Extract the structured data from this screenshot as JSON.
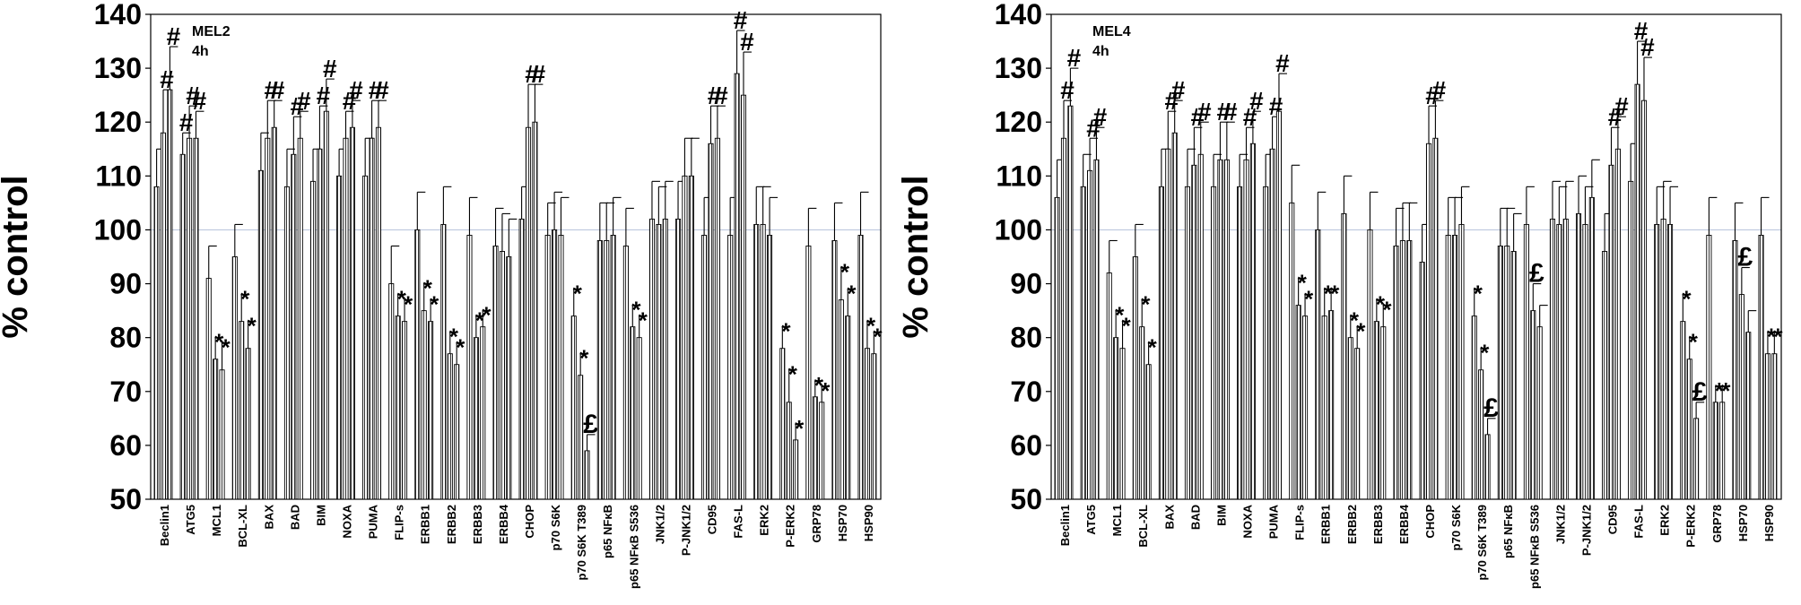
{
  "chart_data": [
    {
      "type": "bar",
      "title": "MEL2",
      "subtitle": "4h",
      "ylabel": "% control",
      "ylim": [
        50,
        140
      ],
      "yticks": [
        50,
        60,
        70,
        80,
        90,
        100,
        110,
        120,
        130,
        140
      ],
      "reference_line": 100,
      "categories": [
        "Beclin1",
        "ATG5",
        "MCL1",
        "BCL-XL",
        "BAX",
        "BAD",
        "BIM",
        "NOXA",
        "PUMA",
        "FLIP-s",
        "ERBB1",
        "ERBB2",
        "ERBB3",
        "ERBB4",
        "CHOP",
        "p70 S6K",
        "p70 S6K T389",
        "p65 NFκB",
        "p65 NFκB S536",
        "JNK1/2",
        "P-JNK1/2",
        "CD95",
        "FAS-L",
        "ERK2",
        "P-ERK2",
        "GRP78",
        "HSP70",
        "HSP90"
      ],
      "groups": [
        {
          "values": [
            108,
            118,
            126
          ],
          "errors": [
            7,
            8,
            8
          ],
          "marks": [
            "",
            "#",
            "#"
          ]
        },
        {
          "values": [
            114,
            117,
            117
          ],
          "errors": [
            4,
            6,
            5
          ],
          "marks": [
            "#",
            "#",
            "#"
          ]
        },
        {
          "values": [
            91,
            76,
            74
          ],
          "errors": [
            6,
            4,
            5
          ],
          "marks": [
            "",
            "*",
            "*"
          ]
        },
        {
          "values": [
            95,
            83,
            78
          ],
          "errors": [
            6,
            5,
            5
          ],
          "marks": [
            "",
            "*",
            "*"
          ]
        },
        {
          "values": [
            111,
            117,
            119
          ],
          "errors": [
            7,
            7,
            5
          ],
          "marks": [
            "",
            "#",
            "#"
          ]
        },
        {
          "values": [
            108,
            114,
            117
          ],
          "errors": [
            7,
            7,
            5
          ],
          "marks": [
            "",
            "#",
            "#"
          ]
        },
        {
          "values": [
            109,
            115,
            122
          ],
          "errors": [
            6,
            8,
            6
          ],
          "marks": [
            "",
            "#",
            "#"
          ]
        },
        {
          "values": [
            110,
            117,
            119
          ],
          "errors": [
            5,
            5,
            5
          ],
          "marks": [
            "",
            "#",
            "#"
          ]
        },
        {
          "values": [
            110,
            117,
            119
          ],
          "errors": [
            7,
            7,
            5
          ],
          "marks": [
            "",
            "#",
            "#"
          ]
        },
        {
          "values": [
            90,
            84,
            83
          ],
          "errors": [
            7,
            4,
            4
          ],
          "marks": [
            "",
            "*",
            "*"
          ]
        },
        {
          "values": [
            100,
            85,
            83
          ],
          "errors": [
            7,
            5,
            4
          ],
          "marks": [
            "",
            "*",
            "*"
          ]
        },
        {
          "values": [
            101,
            77,
            75
          ],
          "errors": [
            7,
            4,
            4
          ],
          "marks": [
            "",
            "*",
            "*"
          ]
        },
        {
          "values": [
            99,
            80,
            82
          ],
          "errors": [
            7,
            4,
            3
          ],
          "marks": [
            "",
            "*",
            "*"
          ]
        },
        {
          "values": [
            97,
            96,
            95
          ],
          "errors": [
            7,
            7,
            7
          ],
          "marks": [
            "",
            "",
            ""
          ]
        },
        {
          "values": [
            102,
            119,
            120
          ],
          "errors": [
            6,
            8,
            7
          ],
          "marks": [
            "",
            "#",
            "#"
          ]
        },
        {
          "values": [
            99,
            100,
            99
          ],
          "errors": [
            6,
            7,
            7
          ],
          "marks": [
            "",
            "",
            ""
          ]
        },
        {
          "values": [
            84,
            73,
            59
          ],
          "errors": [
            5,
            4,
            3
          ],
          "marks": [
            "*",
            "*",
            "£"
          ]
        },
        {
          "values": [
            98,
            98,
            99
          ],
          "errors": [
            7,
            7,
            7
          ],
          "marks": [
            "",
            "",
            ""
          ]
        },
        {
          "values": [
            97,
            82,
            80
          ],
          "errors": [
            7,
            4,
            4
          ],
          "marks": [
            "",
            "*",
            "*"
          ]
        },
        {
          "values": [
            102,
            101,
            102
          ],
          "errors": [
            7,
            7,
            7
          ],
          "marks": [
            "",
            "",
            ""
          ]
        },
        {
          "values": [
            102,
            110,
            110
          ],
          "errors": [
            7,
            7,
            7
          ],
          "marks": [
            "",
            "",
            ""
          ]
        },
        {
          "values": [
            99,
            116,
            117
          ],
          "errors": [
            7,
            7,
            6
          ],
          "marks": [
            "",
            "#",
            "#"
          ]
        },
        {
          "values": [
            99,
            129,
            125
          ],
          "errors": [
            7,
            8,
            8
          ],
          "marks": [
            "",
            "#",
            "#"
          ]
        },
        {
          "values": [
            101,
            101,
            99
          ],
          "errors": [
            7,
            7,
            7
          ],
          "marks": [
            "",
            "",
            ""
          ]
        },
        {
          "values": [
            78,
            68,
            61
          ],
          "errors": [
            4,
            6,
            3
          ],
          "marks": [
            "*",
            "*",
            "*"
          ]
        },
        {
          "values": [
            97,
            69,
            68
          ],
          "errors": [
            7,
            3,
            3
          ],
          "marks": [
            "",
            "*",
            "*"
          ]
        },
        {
          "values": [
            98,
            87,
            84
          ],
          "errors": [
            7,
            6,
            5
          ],
          "marks": [
            "",
            "*",
            "*"
          ]
        },
        {
          "values": [
            99,
            78,
            77
          ],
          "errors": [
            8,
            5,
            4
          ],
          "marks": [
            "",
            "*",
            "*"
          ]
        }
      ]
    },
    {
      "type": "bar",
      "title": "MEL4",
      "subtitle": "4h",
      "ylabel": "% control",
      "ylim": [
        50,
        140
      ],
      "yticks": [
        50,
        60,
        70,
        80,
        90,
        100,
        110,
        120,
        130,
        140
      ],
      "reference_line": 100,
      "categories": [
        "Beclin1",
        "ATG5",
        "MCL1",
        "BCL-XL",
        "BAX",
        "BAD",
        "BIM",
        "NOXA",
        "PUMA",
        "FLIP-s",
        "ERBB1",
        "ERBB2",
        "ERBB3",
        "ERBB4",
        "CHOP",
        "p70 S6K",
        "p70 S6K T389",
        "p65 NFκB",
        "p65 NFκB S536",
        "JNK1/2",
        "P-JNK1/2",
        "CD95",
        "FAS-L",
        "ERK2",
        "P-ERK2",
        "GRP78",
        "HSP70",
        "HSP90"
      ],
      "groups": [
        {
          "values": [
            106,
            117,
            123
          ],
          "errors": [
            7,
            7,
            7
          ],
          "marks": [
            "",
            "#",
            "#"
          ]
        },
        {
          "values": [
            108,
            111,
            113
          ],
          "errors": [
            6,
            6,
            6
          ],
          "marks": [
            "",
            "#",
            "#"
          ]
        },
        {
          "values": [
            92,
            80,
            78
          ],
          "errors": [
            6,
            5,
            5
          ],
          "marks": [
            "",
            "*",
            "*"
          ]
        },
        {
          "values": [
            95,
            82,
            75
          ],
          "errors": [
            6,
            5,
            4
          ],
          "marks": [
            "",
            "*",
            "*"
          ]
        },
        {
          "values": [
            108,
            115,
            118
          ],
          "errors": [
            7,
            7,
            6
          ],
          "marks": [
            "",
            "#",
            "#"
          ]
        },
        {
          "values": [
            108,
            112,
            114
          ],
          "errors": [
            7,
            7,
            6
          ],
          "marks": [
            "",
            "#",
            "#"
          ]
        },
        {
          "values": [
            108,
            113,
            113
          ],
          "errors": [
            6,
            7,
            7
          ],
          "marks": [
            "",
            "#",
            "#"
          ]
        },
        {
          "values": [
            108,
            113,
            116
          ],
          "errors": [
            6,
            6,
            6
          ],
          "marks": [
            "",
            "#",
            "#"
          ]
        },
        {
          "values": [
            108,
            115,
            122
          ],
          "errors": [
            6,
            6,
            7
          ],
          "marks": [
            "",
            "#",
            "#"
          ]
        },
        {
          "values": [
            105,
            86,
            84
          ],
          "errors": [
            7,
            5,
            4
          ],
          "marks": [
            "",
            "*",
            "*"
          ]
        },
        {
          "values": [
            100,
            84,
            85
          ],
          "errors": [
            7,
            5,
            4
          ],
          "marks": [
            "",
            "*",
            "*"
          ]
        },
        {
          "values": [
            103,
            80,
            78
          ],
          "errors": [
            7,
            4,
            4
          ],
          "marks": [
            "",
            "*",
            "*"
          ]
        },
        {
          "values": [
            100,
            83,
            82
          ],
          "errors": [
            7,
            4,
            4
          ],
          "marks": [
            "",
            "*",
            "*"
          ]
        },
        {
          "values": [
            97,
            98,
            98
          ],
          "errors": [
            7,
            7,
            7
          ],
          "marks": [
            "",
            "",
            ""
          ]
        },
        {
          "values": [
            94,
            116,
            117
          ],
          "errors": [
            7,
            7,
            7
          ],
          "marks": [
            "",
            "#",
            "#"
          ]
        },
        {
          "values": [
            99,
            99,
            101
          ],
          "errors": [
            7,
            7,
            7
          ],
          "marks": [
            "",
            "",
            ""
          ]
        },
        {
          "values": [
            84,
            74,
            62
          ],
          "errors": [
            5,
            4,
            3
          ],
          "marks": [
            "*",
            "*",
            "£"
          ]
        },
        {
          "values": [
            97,
            97,
            96
          ],
          "errors": [
            7,
            7,
            7
          ],
          "marks": [
            "",
            "",
            ""
          ]
        },
        {
          "values": [
            101,
            85,
            82
          ],
          "errors": [
            7,
            5,
            4
          ],
          "marks": [
            "",
            "£",
            ""
          ]
        },
        {
          "values": [
            102,
            101,
            102
          ],
          "errors": [
            7,
            7,
            7
          ],
          "marks": [
            "",
            "",
            ""
          ]
        },
        {
          "values": [
            103,
            101,
            106
          ],
          "errors": [
            7,
            7,
            7
          ],
          "marks": [
            "",
            "",
            ""
          ]
        },
        {
          "values": [
            96,
            112,
            115
          ],
          "errors": [
            7,
            7,
            6
          ],
          "marks": [
            "",
            "#",
            "#"
          ]
        },
        {
          "values": [
            109,
            127,
            124
          ],
          "errors": [
            7,
            8,
            8
          ],
          "marks": [
            "",
            "#",
            "#"
          ]
        },
        {
          "values": [
            101,
            102,
            101
          ],
          "errors": [
            7,
            7,
            7
          ],
          "marks": [
            "",
            "",
            ""
          ]
        },
        {
          "values": [
            83,
            76,
            65
          ],
          "errors": [
            5,
            4,
            3
          ],
          "marks": [
            "*",
            "*",
            "£"
          ]
        },
        {
          "values": [
            99,
            68,
            68
          ],
          "errors": [
            7,
            3,
            3
          ],
          "marks": [
            "",
            "*",
            "*"
          ]
        },
        {
          "values": [
            98,
            88,
            81
          ],
          "errors": [
            7,
            5,
            4
          ],
          "marks": [
            "",
            "£",
            ""
          ]
        },
        {
          "values": [
            99,
            77,
            77
          ],
          "errors": [
            7,
            4,
            4
          ],
          "marks": [
            "",
            "*",
            "*"
          ]
        }
      ]
    }
  ]
}
